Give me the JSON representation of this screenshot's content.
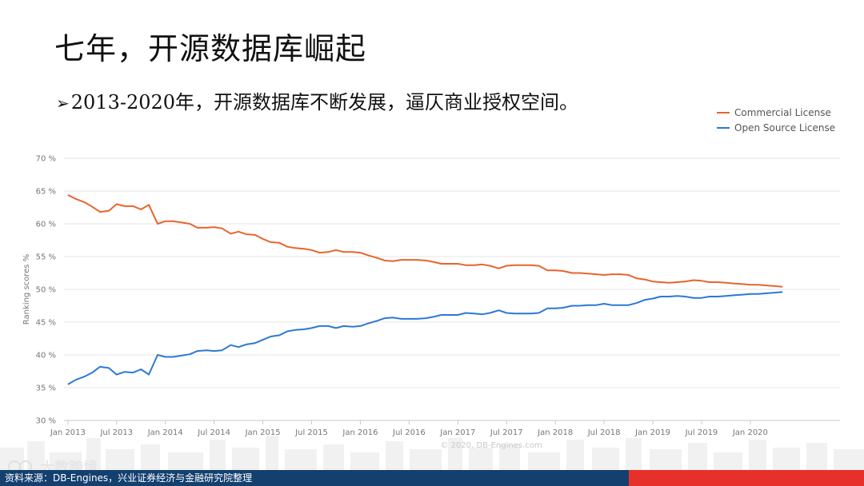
{
  "header": {
    "title": "七年，开源数据库崛起",
    "subtitle_bullet": "➢",
    "subtitle": "2013-2020年，开源数据库不断发展，逼仄商业授权空间。"
  },
  "footer": {
    "source": "资料来源：DB-Engines，兴业证券经济与金融研究院整理",
    "watermark": "大数跨境"
  },
  "chart_data": {
    "type": "line",
    "ylabel": "Ranking scores %",
    "ylim": [
      30,
      70
    ],
    "y_ticks": [
      30,
      35,
      40,
      45,
      50,
      55,
      60,
      65,
      70
    ],
    "y_tick_labels": [
      "30 %",
      "35 %",
      "40 %",
      "45 %",
      "50 %",
      "55 %",
      "60 %",
      "65 %",
      "70 %"
    ],
    "x_ticks": [
      2013.0,
      2013.5,
      2014.0,
      2014.5,
      2015.0,
      2015.5,
      2016.0,
      2016.5,
      2017.0,
      2017.5,
      2018.0,
      2018.5,
      2019.0,
      2019.5,
      2020.0
    ],
    "x_tick_labels": [
      "Jan 2013",
      "Jul 2013",
      "Jan 2014",
      "Jul 2014",
      "Jan 2015",
      "Jul 2015",
      "Jan 2016",
      "Jul 2016",
      "Jan 2017",
      "Jul 2017",
      "Jan 2018",
      "Jul 2018",
      "Jan 2019",
      "Jul 2019",
      "Jan 2020"
    ],
    "xlim": [
      2012.96,
      2020.92
    ],
    "grid": true,
    "legend_position": "top-right",
    "copyright": "© 2020, DB-Engines.com",
    "series": [
      {
        "name": "Commercial License",
        "color": "#e8642c",
        "points": [
          [
            2013.0,
            64.4
          ],
          [
            2013.08,
            63.8
          ],
          [
            2013.17,
            63.3
          ],
          [
            2013.25,
            62.6
          ],
          [
            2013.33,
            61.8
          ],
          [
            2013.42,
            62.0
          ],
          [
            2013.5,
            63.0
          ],
          [
            2013.58,
            62.7
          ],
          [
            2013.67,
            62.7
          ],
          [
            2013.75,
            62.2
          ],
          [
            2013.83,
            62.9
          ],
          [
            2013.92,
            60.0
          ],
          [
            2014.0,
            60.4
          ],
          [
            2014.08,
            60.4
          ],
          [
            2014.17,
            60.2
          ],
          [
            2014.25,
            60.0
          ],
          [
            2014.33,
            59.4
          ],
          [
            2014.42,
            59.4
          ],
          [
            2014.5,
            59.5
          ],
          [
            2014.58,
            59.3
          ],
          [
            2014.67,
            58.5
          ],
          [
            2014.75,
            58.8
          ],
          [
            2014.83,
            58.4
          ],
          [
            2014.92,
            58.3
          ],
          [
            2015.0,
            57.7
          ],
          [
            2015.08,
            57.2
          ],
          [
            2015.17,
            57.1
          ],
          [
            2015.25,
            56.5
          ],
          [
            2015.33,
            56.3
          ],
          [
            2015.42,
            56.2
          ],
          [
            2015.5,
            56.0
          ],
          [
            2015.58,
            55.6
          ],
          [
            2015.67,
            55.7
          ],
          [
            2015.75,
            56.0
          ],
          [
            2015.83,
            55.7
          ],
          [
            2015.92,
            55.7
          ],
          [
            2016.0,
            55.6
          ],
          [
            2016.08,
            55.2
          ],
          [
            2016.17,
            54.8
          ],
          [
            2016.25,
            54.4
          ],
          [
            2016.33,
            54.3
          ],
          [
            2016.42,
            54.5
          ],
          [
            2016.5,
            54.5
          ],
          [
            2016.58,
            54.5
          ],
          [
            2016.67,
            54.4
          ],
          [
            2016.75,
            54.2
          ],
          [
            2016.83,
            53.9
          ],
          [
            2016.92,
            53.9
          ],
          [
            2017.0,
            53.9
          ],
          [
            2017.08,
            53.7
          ],
          [
            2017.17,
            53.7
          ],
          [
            2017.25,
            53.8
          ],
          [
            2017.33,
            53.6
          ],
          [
            2017.42,
            53.2
          ],
          [
            2017.5,
            53.6
          ],
          [
            2017.58,
            53.7
          ],
          [
            2017.67,
            53.7
          ],
          [
            2017.75,
            53.7
          ],
          [
            2017.83,
            53.6
          ],
          [
            2017.92,
            52.9
          ],
          [
            2018.0,
            52.9
          ],
          [
            2018.08,
            52.8
          ],
          [
            2018.17,
            52.5
          ],
          [
            2018.25,
            52.5
          ],
          [
            2018.33,
            52.4
          ],
          [
            2018.42,
            52.3
          ],
          [
            2018.5,
            52.2
          ],
          [
            2018.58,
            52.3
          ],
          [
            2018.67,
            52.3
          ],
          [
            2018.75,
            52.2
          ],
          [
            2018.83,
            51.7
          ],
          [
            2018.92,
            51.5
          ],
          [
            2019.0,
            51.2
          ],
          [
            2019.08,
            51.1
          ],
          [
            2019.17,
            51.0
          ],
          [
            2019.25,
            51.1
          ],
          [
            2019.33,
            51.2
          ],
          [
            2019.42,
            51.4
          ],
          [
            2019.5,
            51.3
          ],
          [
            2019.58,
            51.1
          ],
          [
            2019.67,
            51.1
          ],
          [
            2019.75,
            51.0
          ],
          [
            2019.83,
            50.9
          ],
          [
            2019.92,
            50.8
          ],
          [
            2020.0,
            50.7
          ],
          [
            2020.08,
            50.7
          ],
          [
            2020.17,
            50.6
          ],
          [
            2020.25,
            50.5
          ],
          [
            2020.33,
            50.4
          ]
        ]
      },
      {
        "name": "Open Source License",
        "color": "#2c78d6",
        "points": [
          [
            2013.0,
            35.5
          ],
          [
            2013.08,
            36.2
          ],
          [
            2013.17,
            36.7
          ],
          [
            2013.25,
            37.3
          ],
          [
            2013.33,
            38.2
          ],
          [
            2013.42,
            38.0
          ],
          [
            2013.5,
            37.0
          ],
          [
            2013.58,
            37.4
          ],
          [
            2013.67,
            37.3
          ],
          [
            2013.75,
            37.8
          ],
          [
            2013.83,
            37.0
          ],
          [
            2013.92,
            40.0
          ],
          [
            2014.0,
            39.7
          ],
          [
            2014.08,
            39.7
          ],
          [
            2014.17,
            39.9
          ],
          [
            2014.25,
            40.1
          ],
          [
            2014.33,
            40.6
          ],
          [
            2014.42,
            40.7
          ],
          [
            2014.5,
            40.6
          ],
          [
            2014.58,
            40.7
          ],
          [
            2014.67,
            41.5
          ],
          [
            2014.75,
            41.2
          ],
          [
            2014.83,
            41.6
          ],
          [
            2014.92,
            41.8
          ],
          [
            2015.0,
            42.3
          ],
          [
            2015.08,
            42.8
          ],
          [
            2015.17,
            43.0
          ],
          [
            2015.25,
            43.6
          ],
          [
            2015.33,
            43.8
          ],
          [
            2015.42,
            43.9
          ],
          [
            2015.5,
            44.1
          ],
          [
            2015.58,
            44.4
          ],
          [
            2015.67,
            44.4
          ],
          [
            2015.75,
            44.1
          ],
          [
            2015.83,
            44.4
          ],
          [
            2015.92,
            44.3
          ],
          [
            2016.0,
            44.4
          ],
          [
            2016.08,
            44.8
          ],
          [
            2016.17,
            45.2
          ],
          [
            2016.25,
            45.6
          ],
          [
            2016.33,
            45.7
          ],
          [
            2016.42,
            45.5
          ],
          [
            2016.5,
            45.5
          ],
          [
            2016.58,
            45.5
          ],
          [
            2016.67,
            45.6
          ],
          [
            2016.75,
            45.8
          ],
          [
            2016.83,
            46.1
          ],
          [
            2016.92,
            46.1
          ],
          [
            2017.0,
            46.1
          ],
          [
            2017.08,
            46.4
          ],
          [
            2017.17,
            46.3
          ],
          [
            2017.25,
            46.2
          ],
          [
            2017.33,
            46.4
          ],
          [
            2017.42,
            46.8
          ],
          [
            2017.5,
            46.4
          ],
          [
            2017.58,
            46.3
          ],
          [
            2017.67,
            46.3
          ],
          [
            2017.75,
            46.3
          ],
          [
            2017.83,
            46.4
          ],
          [
            2017.92,
            47.1
          ],
          [
            2018.0,
            47.1
          ],
          [
            2018.08,
            47.2
          ],
          [
            2018.17,
            47.5
          ],
          [
            2018.25,
            47.5
          ],
          [
            2018.33,
            47.6
          ],
          [
            2018.42,
            47.6
          ],
          [
            2018.5,
            47.8
          ],
          [
            2018.58,
            47.6
          ],
          [
            2018.67,
            47.6
          ],
          [
            2018.75,
            47.6
          ],
          [
            2018.83,
            47.9
          ],
          [
            2018.92,
            48.4
          ],
          [
            2019.0,
            48.6
          ],
          [
            2019.08,
            48.9
          ],
          [
            2019.17,
            48.9
          ],
          [
            2019.25,
            49.0
          ],
          [
            2019.33,
            48.9
          ],
          [
            2019.42,
            48.7
          ],
          [
            2019.5,
            48.7
          ],
          [
            2019.58,
            48.9
          ],
          [
            2019.67,
            48.9
          ],
          [
            2019.75,
            49.0
          ],
          [
            2019.83,
            49.1
          ],
          [
            2019.92,
            49.2
          ],
          [
            2020.0,
            49.3
          ],
          [
            2020.08,
            49.3
          ],
          [
            2020.17,
            49.4
          ],
          [
            2020.25,
            49.5
          ],
          [
            2020.33,
            49.6
          ]
        ]
      }
    ]
  }
}
